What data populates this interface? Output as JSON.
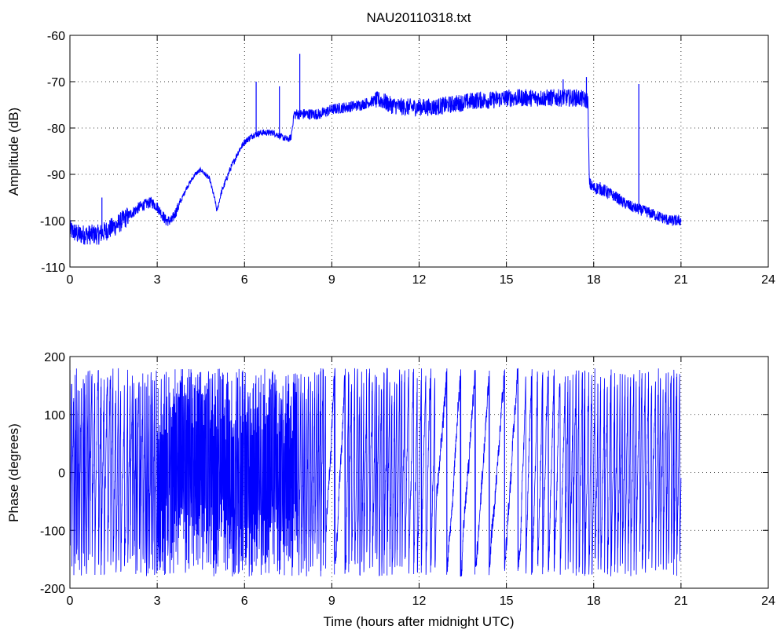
{
  "figure": {
    "title": "NAU20110318.txt"
  },
  "chart_data": [
    {
      "type": "line",
      "title": "NAU20110318.txt",
      "xlabel": "",
      "ylabel": "Amplitude (dB)",
      "xlim": [
        0,
        24
      ],
      "ylim": [
        -110,
        -60
      ],
      "xticks": [
        0,
        3,
        6,
        9,
        12,
        15,
        18,
        21,
        24
      ],
      "yticks": [
        -110,
        -100,
        -90,
        -80,
        -70,
        -60
      ],
      "grid": true,
      "color": "#0000ff",
      "series": [
        {
          "x": [
            0,
            0.3,
            0.6,
            1.0,
            1.3,
            1.6,
            2.0,
            2.4,
            2.8,
            3.0,
            3.3,
            3.5,
            3.8,
            4.0,
            4.3,
            4.5,
            4.8,
            5.0,
            5.05,
            5.2,
            5.5,
            5.8,
            6.0,
            6.3,
            6.6,
            7.0,
            7.3,
            7.5,
            7.6,
            7.7,
            7.8,
            8.2,
            8.6,
            9.0,
            9.5,
            10.0,
            10.5,
            10.7,
            11.0,
            11.5,
            12.0,
            12.5,
            13.0,
            13.5,
            14.0,
            14.5,
            15.0,
            15.5,
            16.0,
            16.5,
            17.0,
            17.5,
            17.7,
            17.8,
            17.85,
            18.0,
            18.2,
            18.5,
            18.8,
            19.0,
            19.3,
            19.5,
            19.8,
            20.2,
            20.6,
            21.0
          ],
          "y": [
            -102,
            -103,
            -103,
            -103,
            -102,
            -101,
            -99,
            -97,
            -96,
            -97,
            -100,
            -100,
            -96,
            -93,
            -90,
            -89,
            -91,
            -96,
            -98,
            -94,
            -89,
            -85,
            -83,
            -81.5,
            -81,
            -81,
            -82,
            -82.5,
            -82,
            -77,
            -77,
            -77,
            -77,
            -76,
            -75.5,
            -75,
            -74,
            -74,
            -75,
            -75.5,
            -75.5,
            -75.5,
            -75,
            -74.5,
            -74,
            -74,
            -73.5,
            -73.5,
            -73.5,
            -73.5,
            -73.5,
            -73.5,
            -74,
            -74,
            -92,
            -93,
            -93,
            -94,
            -95,
            -96,
            -97,
            -97.5,
            -98,
            -99,
            -100,
            -100
          ]
        }
      ],
      "spikes": [
        {
          "x": 1.1,
          "y": -95
        },
        {
          "x": 6.4,
          "y": -70
        },
        {
          "x": 7.2,
          "y": -71
        },
        {
          "x": 7.9,
          "y": -64
        },
        {
          "x": 16.95,
          "y": -69.5
        },
        {
          "x": 17.75,
          "y": -69
        },
        {
          "x": 19.55,
          "y": -70.5
        }
      ]
    },
    {
      "type": "line",
      "title": "",
      "xlabel": "Time (hours after midnight UTC)",
      "ylabel": "Phase (degrees)",
      "xlim": [
        0,
        24
      ],
      "ylim": [
        -200,
        200
      ],
      "xticks": [
        0,
        3,
        6,
        9,
        12,
        15,
        18,
        21,
        24
      ],
      "yticks": [
        -200,
        -100,
        0,
        100,
        200
      ],
      "grid": true,
      "color": "#0000ff",
      "x_extent": [
        0,
        21
      ],
      "phase_wrap": [
        -180,
        180
      ]
    }
  ]
}
